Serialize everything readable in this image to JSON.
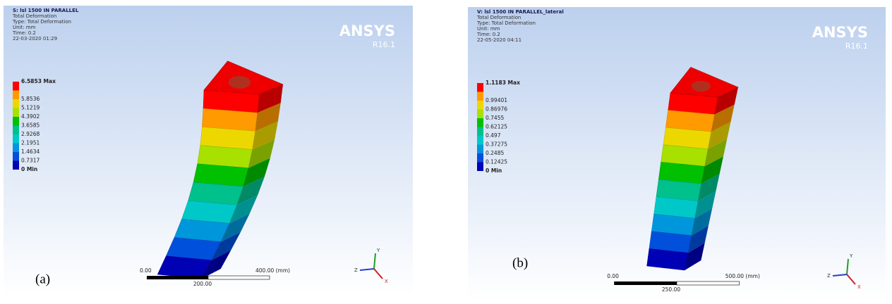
{
  "panels": [
    {
      "title": "S: lsl 1500 IN PARALLEL",
      "info": [
        "Total Deformation",
        "Type: Total Deformation",
        "Unit: mm",
        "Time: 0.2",
        "22-03-2020 01:29"
      ],
      "legend": [
        "6.5853 Max",
        "5.8536",
        "5.1219",
        "4.3902",
        "3.6585",
        "2.9268",
        "2.1951",
        "1.4634",
        "0.7317",
        "0 Min"
      ],
      "brand": "ANSYS",
      "version": "R16.1",
      "scale": {
        "start": "0.00",
        "end": "400.00 (mm)",
        "mid": "200.00"
      },
      "triad": {
        "y": "Y",
        "z": "Z",
        "x": "X"
      },
      "caption": "(a)"
    },
    {
      "title": "V: lsl 1500 IN PARALLEL_lateral",
      "info": [
        "Total Deformation",
        "Type: Total Deformation",
        "Unit: mm",
        "Time: 0.2",
        "22-05-2020 04:11"
      ],
      "legend": [
        "1.1183 Max",
        "0.99401",
        "0.86976",
        "0.7455",
        "0.62125",
        "0.497",
        "0.37275",
        "0.2485",
        "0.12425",
        "0 Min"
      ],
      "brand": "ANSYS",
      "version": "R16.1",
      "scale": {
        "start": "0.00",
        "end": "500.00 (mm)",
        "mid": "250.00"
      },
      "triad": {
        "y": "Y",
        "z": "Z",
        "x": "X"
      },
      "caption": "(b)"
    }
  ]
}
